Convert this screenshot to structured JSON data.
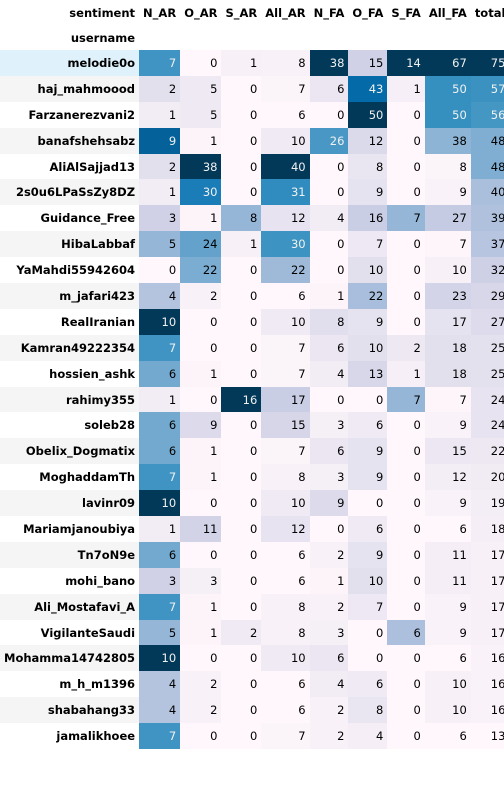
{
  "chart_data": {
    "type": "table",
    "column_axis_label": "sentiment",
    "row_axis_label": "username",
    "columns": [
      "N_AR",
      "O_AR",
      "S_AR",
      "All_AR",
      "N_FA",
      "O_FA",
      "S_FA",
      "All_FA",
      "total"
    ],
    "colormap": "blues",
    "rows": [
      {
        "username": "melodie0o",
        "values": [
          7,
          0,
          1,
          8,
          38,
          15,
          14,
          67,
          75
        ]
      },
      {
        "username": "haj_mahmoood",
        "values": [
          2,
          5,
          0,
          7,
          6,
          43,
          1,
          50,
          57
        ]
      },
      {
        "username": "Farzanerezvani2",
        "values": [
          1,
          5,
          0,
          6,
          0,
          50,
          0,
          50,
          56
        ]
      },
      {
        "username": "banafshehsabz",
        "values": [
          9,
          1,
          0,
          10,
          26,
          12,
          0,
          38,
          48
        ]
      },
      {
        "username": "AliAlSajjad13",
        "values": [
          2,
          38,
          0,
          40,
          0,
          8,
          0,
          8,
          48
        ]
      },
      {
        "username": "2s0u6LPaSsZy8DZ",
        "values": [
          1,
          30,
          0,
          31,
          0,
          9,
          0,
          9,
          40
        ]
      },
      {
        "username": "Guidance_Free",
        "values": [
          3,
          1,
          8,
          12,
          4,
          16,
          7,
          27,
          39
        ]
      },
      {
        "username": "HibaLabbaf",
        "values": [
          5,
          24,
          1,
          30,
          0,
          7,
          0,
          7,
          37
        ]
      },
      {
        "username": "YaMahdi55942604",
        "values": [
          0,
          22,
          0,
          22,
          0,
          10,
          0,
          10,
          32
        ]
      },
      {
        "username": "m_jafari423",
        "values": [
          4,
          2,
          0,
          6,
          1,
          22,
          0,
          23,
          29
        ]
      },
      {
        "username": "RealIranian",
        "values": [
          10,
          0,
          0,
          10,
          8,
          9,
          0,
          17,
          27
        ]
      },
      {
        "username": "Kamran49222354",
        "values": [
          7,
          0,
          0,
          7,
          6,
          10,
          2,
          18,
          25
        ]
      },
      {
        "username": "hossien_ashk",
        "values": [
          6,
          1,
          0,
          7,
          4,
          13,
          1,
          18,
          25
        ]
      },
      {
        "username": "rahimy355",
        "values": [
          1,
          0,
          16,
          17,
          0,
          0,
          7,
          7,
          24
        ]
      },
      {
        "username": "soleb28",
        "values": [
          6,
          9,
          0,
          15,
          3,
          6,
          0,
          9,
          24
        ]
      },
      {
        "username": "Obelix_Dogmatix",
        "values": [
          6,
          1,
          0,
          7,
          6,
          9,
          0,
          15,
          22
        ]
      },
      {
        "username": "MoghaddamTh",
        "values": [
          7,
          1,
          0,
          8,
          3,
          9,
          0,
          12,
          20
        ]
      },
      {
        "username": "lavinr09",
        "values": [
          10,
          0,
          0,
          10,
          9,
          0,
          0,
          9,
          19
        ]
      },
      {
        "username": "Mariamjanoubiya",
        "values": [
          1,
          11,
          0,
          12,
          0,
          6,
          0,
          6,
          18
        ]
      },
      {
        "username": "Tn7oN9e",
        "values": [
          6,
          0,
          0,
          6,
          2,
          9,
          0,
          11,
          17
        ]
      },
      {
        "username": "mohi_bano",
        "values": [
          3,
          3,
          0,
          6,
          1,
          10,
          0,
          11,
          17
        ]
      },
      {
        "username": "Ali_Mostafavi_A",
        "values": [
          7,
          1,
          0,
          8,
          2,
          7,
          0,
          9,
          17
        ]
      },
      {
        "username": "VigilanteSaudi",
        "values": [
          5,
          1,
          2,
          8,
          3,
          0,
          6,
          9,
          17
        ]
      },
      {
        "username": "Mohamma14742805",
        "values": [
          10,
          0,
          0,
          10,
          6,
          0,
          0,
          6,
          16
        ]
      },
      {
        "username": "m_h_m1396",
        "values": [
          4,
          2,
          0,
          6,
          4,
          6,
          0,
          10,
          16
        ]
      },
      {
        "username": "shabahang33",
        "values": [
          4,
          2,
          0,
          6,
          2,
          8,
          0,
          10,
          16
        ]
      },
      {
        "username": "jamalikhoee",
        "values": [
          7,
          0,
          0,
          7,
          2,
          4,
          0,
          6,
          13
        ]
      }
    ]
  }
}
